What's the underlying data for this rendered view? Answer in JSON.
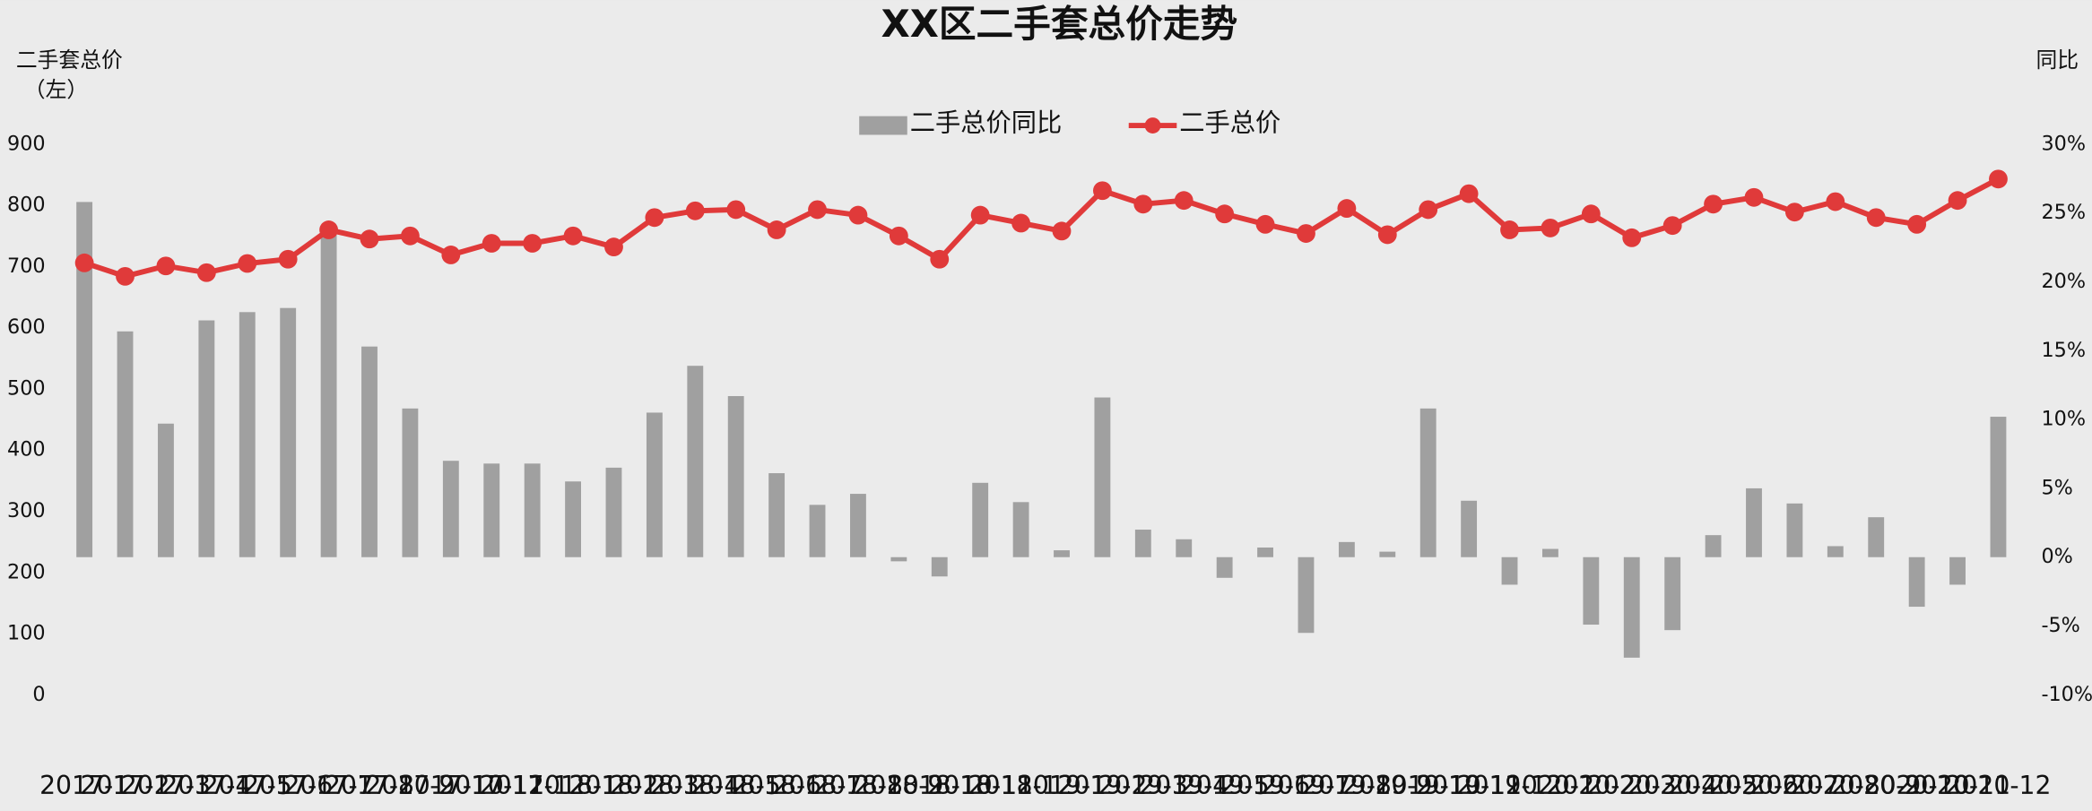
{
  "chart_data": {
    "type": "bar-line",
    "title": "XX区二手套总价走势",
    "y_label": [
      "二手套总价",
      "（左）"
    ],
    "y2_label": "同比",
    "categories": [
      "2017-1",
      "2017-2",
      "2017-3",
      "2017-4",
      "2017-5",
      "2017-6",
      "2017-7",
      "2017-8",
      "2017-9",
      "2017-10",
      "2017-11",
      "2017-12",
      "2018-1",
      "2018-2",
      "2018-3",
      "2018-4",
      "2018-5",
      "2018-6",
      "2018-7",
      "2018-8",
      "2018-9",
      "2018-10",
      "2018-11",
      "2018-12",
      "2019-1",
      "2019-2",
      "2019-3",
      "2019-4",
      "2019-5",
      "2019-6",
      "2019-7",
      "2019-8",
      "2019-9",
      "2019-10",
      "2019-11",
      "2019-12",
      "2020-1",
      "2020-2",
      "2020-3",
      "2020-4",
      "2020-5",
      "2020-6",
      "2020-7",
      "2020-8",
      "2020-9",
      "2020-10",
      "2020-11",
      "2020-12"
    ],
    "series": [
      {
        "name": "二手总价同比",
        "type": "bar",
        "axis": "y2",
        "color": "#a0a0a0",
        "values": [
          25.8,
          16.4,
          9.7,
          17.2,
          17.8,
          18.1,
          23.9,
          15.3,
          10.8,
          7.0,
          6.8,
          6.8,
          5.5,
          6.5,
          10.5,
          13.9,
          11.7,
          6.1,
          3.8,
          4.6,
          -0.3,
          -1.4,
          5.4,
          4.0,
          0.5,
          11.6,
          2.0,
          1.3,
          -1.5,
          0.7,
          -5.5,
          1.1,
          0.4,
          10.8,
          4.1,
          -2.0,
          0.6,
          -4.9,
          -7.3,
          -5.3,
          1.6,
          5.0,
          3.9,
          0.8,
          2.9,
          -3.6,
          -2.0,
          10.2
        ]
      },
      {
        "name": "二手总价",
        "type": "line",
        "axis": "y",
        "color": "#e03a3a",
        "values": [
          706,
          684,
          701,
          690,
          705,
          712,
          760,
          745,
          750,
          719,
          738,
          738,
          750,
          732,
          780,
          791,
          793,
          760,
          793,
          784,
          750,
          712,
          784,
          771,
          758,
          824,
          802,
          808,
          786,
          769,
          754,
          795,
          752,
          793,
          819,
          760,
          763,
          786,
          747,
          767,
          802,
          813,
          789,
          806,
          780,
          769,
          808,
          843
        ]
      }
    ],
    "ylim": [
      0,
      900
    ],
    "yticks": [
      0,
      100,
      200,
      300,
      400,
      500,
      600,
      700,
      800,
      900
    ],
    "y2lim": [
      -10,
      30
    ],
    "y2ticks": [
      {
        "value": -10,
        "label": "-10%"
      },
      {
        "value": -5,
        "label": "-5%"
      },
      {
        "value": 0,
        "label": "0%"
      },
      {
        "value": 5,
        "label": "5%"
      },
      {
        "value": 10,
        "label": "10%"
      },
      {
        "value": 15,
        "label": "15%"
      },
      {
        "value": 20,
        "label": "20%"
      },
      {
        "value": 25,
        "label": "25%"
      },
      {
        "value": 30,
        "label": "30%"
      }
    ],
    "legend": "top"
  }
}
